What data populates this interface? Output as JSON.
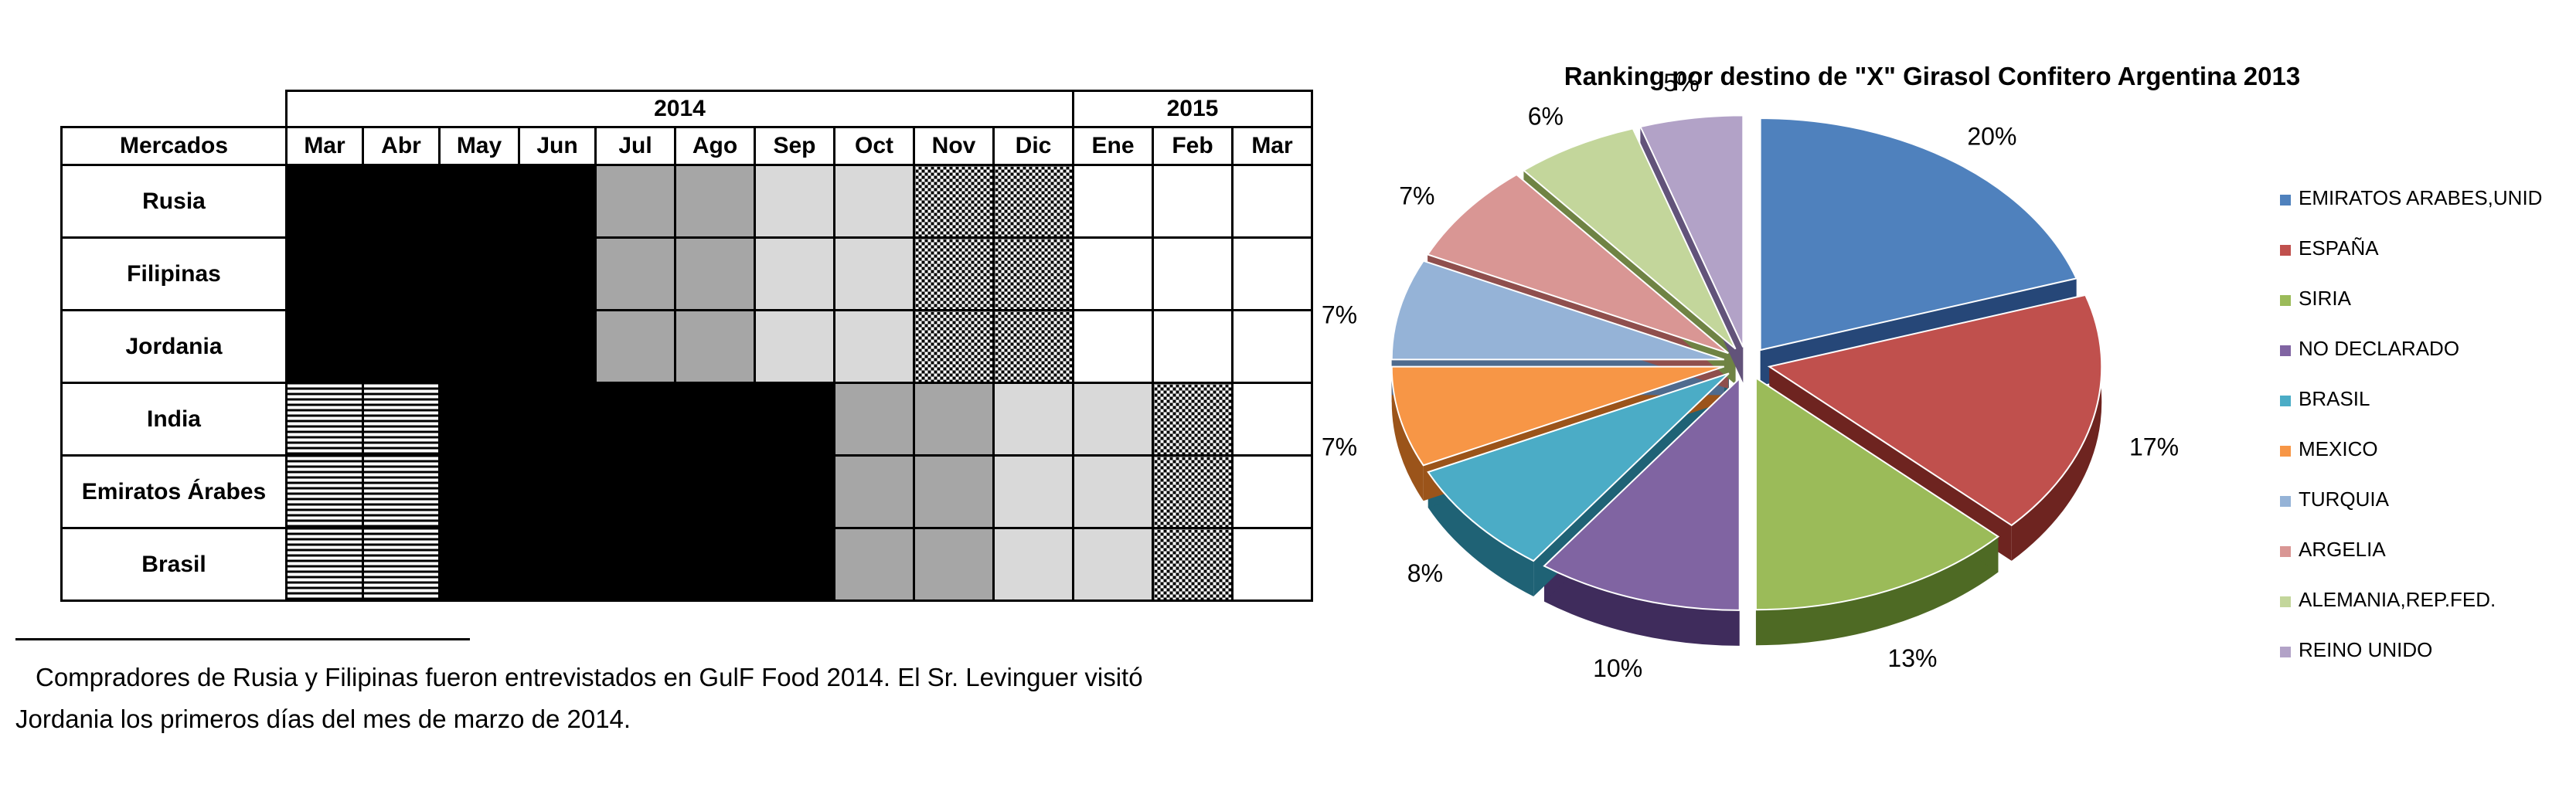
{
  "table": {
    "years": [
      {
        "label": "2014",
        "span": 10
      },
      {
        "label": "2015",
        "span": 3
      }
    ],
    "header_market": "Mercados",
    "months": [
      "Mar",
      "Abr",
      "May",
      "Jun",
      "Jul",
      "Ago",
      "Sep",
      "Oct",
      "Nov",
      "Dic",
      "Ene",
      "Feb",
      "Mar"
    ],
    "rows": [
      {
        "market": "Rusia",
        "fills": [
          "black",
          "black",
          "black",
          "black",
          "dgray",
          "dgray",
          "lgray",
          "lgray",
          "checker",
          "checker",
          "none",
          "none",
          "none"
        ]
      },
      {
        "market": "Filipinas",
        "fills": [
          "black",
          "black",
          "black",
          "black",
          "dgray",
          "dgray",
          "lgray",
          "lgray",
          "checker",
          "checker",
          "none",
          "none",
          "none"
        ]
      },
      {
        "market": "Jordania",
        "fills": [
          "black",
          "black",
          "black",
          "black",
          "dgray",
          "dgray",
          "lgray",
          "lgray",
          "checker",
          "checker",
          "none",
          "none",
          "none"
        ]
      },
      {
        "market": "India",
        "fills": [
          "lines",
          "lines",
          "black",
          "black",
          "black",
          "black",
          "black",
          "dgray",
          "dgray",
          "lgray",
          "lgray",
          "checker",
          "none"
        ]
      },
      {
        "market": "Emiratos Árabes",
        "fills": [
          "lines",
          "lines",
          "black",
          "black",
          "black",
          "black",
          "black",
          "dgray",
          "dgray",
          "lgray",
          "lgray",
          "checker",
          "none"
        ]
      },
      {
        "market": "Brasil",
        "fills": [
          "lines",
          "lines",
          "black",
          "black",
          "black",
          "black",
          "black",
          "dgray",
          "dgray",
          "lgray",
          "lgray",
          "checker",
          "none"
        ]
      }
    ],
    "colors": {
      "black": "#000000",
      "dgray": "#a6a6a6",
      "lgray": "#d9d9d9",
      "none": "#ffffff"
    }
  },
  "footnote": {
    "line1": "Compradores de Rusia y Filipinas fueron entrevistados en GulF Food 2014. El Sr. Levinguer visitó",
    "line2": "Jordania los primeros días del mes de marzo de 2014."
  },
  "chart_data": {
    "type": "pie",
    "title": "Ranking por destino de \"X\" Girasol Confitero Argentina 2013",
    "style": "3d-exploded",
    "legend_position": "right",
    "slices": [
      {
        "label": "EMIRATOS ARABES,UNID",
        "value": 20,
        "display": "20%",
        "color": "#4f81bd",
        "side": "#264778"
      },
      {
        "label": "ESPAÑA",
        "value": 17,
        "display": "17%",
        "color": "#c0504d",
        "side": "#6e2420"
      },
      {
        "label": "SIRIA",
        "value": 13,
        "display": "13%",
        "color": "#9bbb59",
        "side": "#4e6a24"
      },
      {
        "label": "NO DECLARADO",
        "value": 10,
        "display": "10%",
        "color": "#8064a2",
        "side": "#3f2c5c"
      },
      {
        "label": "BRASIL",
        "value": 8,
        "display": "8%",
        "color": "#4bacc6",
        "side": "#1f6275"
      },
      {
        "label": "MEXICO",
        "value": 7,
        "display": "7%",
        "color": "#f79646",
        "side": "#9b541a"
      },
      {
        "label": "TURQUIA",
        "value": 7,
        "display": "7%",
        "color": "#95b3d7",
        "side": "#4f6b8e"
      },
      {
        "label": "ARGELIA",
        "value": 7,
        "display": "7%",
        "color": "#d99694",
        "side": "#8f4f4d"
      },
      {
        "label": "ALEMANIA,REP.FED.",
        "value": 6,
        "display": "6%",
        "color": "#c3d69b",
        "side": "#6f8344"
      },
      {
        "label": "REINO UNIDO",
        "value": 5,
        "display": "5%",
        "color": "#b2a2c7",
        "side": "#62537a"
      }
    ]
  }
}
